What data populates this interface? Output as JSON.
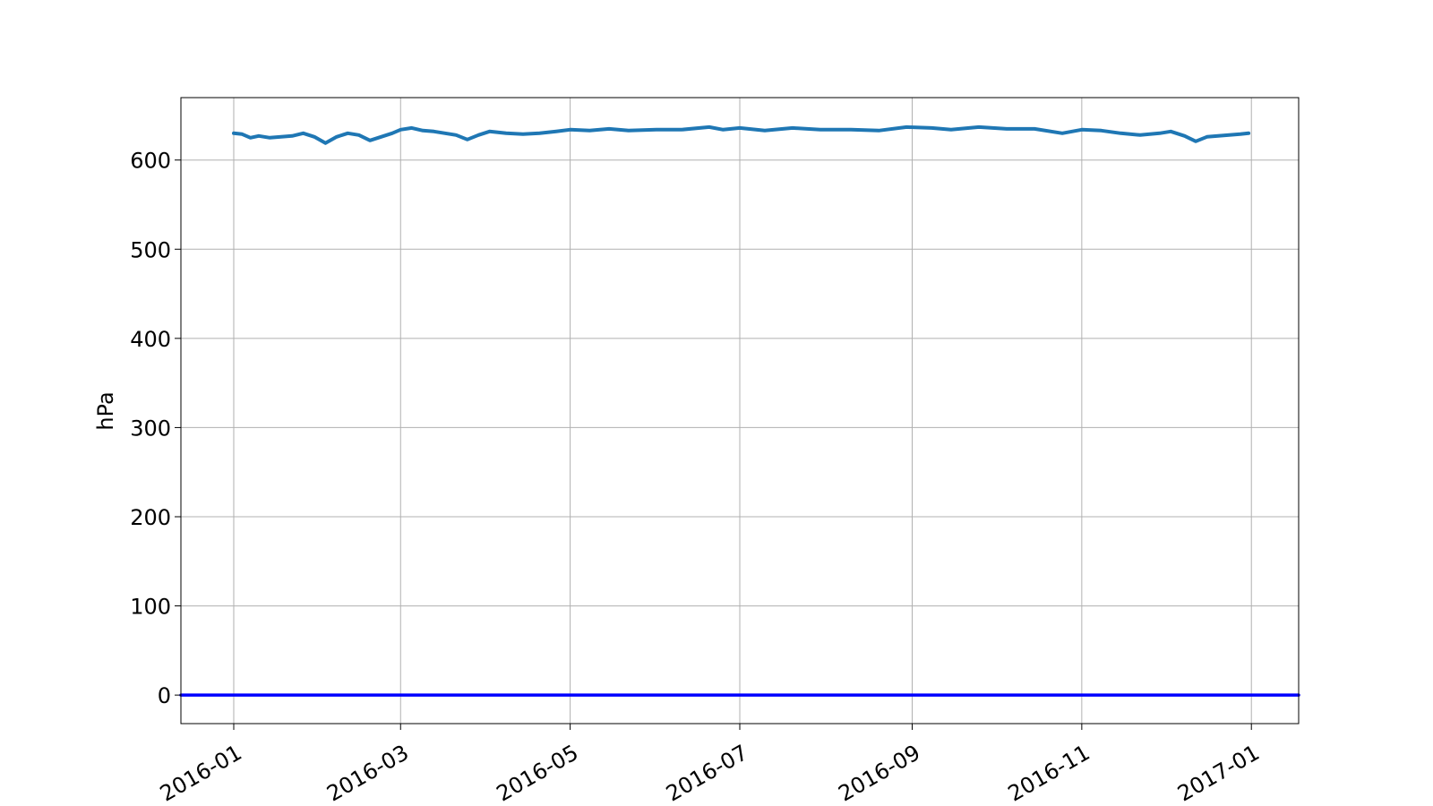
{
  "chart_data": {
    "type": "line",
    "ylabel": "hPa",
    "xlabel": "",
    "title": "",
    "x_range": [
      "2015-12-13",
      "2017-01-18"
    ],
    "ylim": [
      -32,
      670
    ],
    "grid": true,
    "xticks": [
      {
        "date": "2016-01-01",
        "label": "2016-01"
      },
      {
        "date": "2016-03-01",
        "label": "2016-03"
      },
      {
        "date": "2016-05-01",
        "label": "2016-05"
      },
      {
        "date": "2016-07-01",
        "label": "2016-07"
      },
      {
        "date": "2016-09-01",
        "label": "2016-09"
      },
      {
        "date": "2016-11-01",
        "label": "2016-11"
      },
      {
        "date": "2017-01-01",
        "label": "2017-01"
      }
    ],
    "yticks": [
      0,
      100,
      200,
      300,
      400,
      500,
      600
    ],
    "series": [
      {
        "color": "#1f77b4",
        "points": [
          [
            "2016-01-01",
            630
          ],
          [
            "2016-01-04",
            629
          ],
          [
            "2016-01-07",
            625
          ],
          [
            "2016-01-10",
            627
          ],
          [
            "2016-01-14",
            625
          ],
          [
            "2016-01-18",
            626
          ],
          [
            "2016-01-22",
            627
          ],
          [
            "2016-01-26",
            630
          ],
          [
            "2016-01-30",
            626
          ],
          [
            "2016-02-03",
            619
          ],
          [
            "2016-02-07",
            626
          ],
          [
            "2016-02-11",
            630
          ],
          [
            "2016-02-15",
            628
          ],
          [
            "2016-02-19",
            622
          ],
          [
            "2016-02-23",
            626
          ],
          [
            "2016-02-27",
            630
          ],
          [
            "2016-03-01",
            634
          ],
          [
            "2016-03-05",
            636
          ],
          [
            "2016-03-09",
            633
          ],
          [
            "2016-03-13",
            632
          ],
          [
            "2016-03-17",
            630
          ],
          [
            "2016-03-21",
            628
          ],
          [
            "2016-03-25",
            623
          ],
          [
            "2016-03-29",
            628
          ],
          [
            "2016-04-02",
            632
          ],
          [
            "2016-04-08",
            630
          ],
          [
            "2016-04-14",
            629
          ],
          [
            "2016-04-20",
            630
          ],
          [
            "2016-04-26",
            632
          ],
          [
            "2016-05-01",
            634
          ],
          [
            "2016-05-08",
            633
          ],
          [
            "2016-05-15",
            635
          ],
          [
            "2016-05-22",
            633
          ],
          [
            "2016-06-01",
            634
          ],
          [
            "2016-06-10",
            634
          ],
          [
            "2016-06-20",
            637
          ],
          [
            "2016-06-25",
            634
          ],
          [
            "2016-07-01",
            636
          ],
          [
            "2016-07-10",
            633
          ],
          [
            "2016-07-20",
            636
          ],
          [
            "2016-07-30",
            634
          ],
          [
            "2016-08-10",
            634
          ],
          [
            "2016-08-20",
            633
          ],
          [
            "2016-08-30",
            637
          ],
          [
            "2016-09-08",
            636
          ],
          [
            "2016-09-15",
            634
          ],
          [
            "2016-09-25",
            637
          ],
          [
            "2016-10-05",
            635
          ],
          [
            "2016-10-15",
            635
          ],
          [
            "2016-10-25",
            630
          ],
          [
            "2016-11-01",
            634
          ],
          [
            "2016-11-08",
            633
          ],
          [
            "2016-11-15",
            630
          ],
          [
            "2016-11-22",
            628
          ],
          [
            "2016-11-29",
            630
          ],
          [
            "2016-12-03",
            632
          ],
          [
            "2016-12-08",
            627
          ],
          [
            "2016-12-12",
            621
          ],
          [
            "2016-12-16",
            626
          ],
          [
            "2016-12-20",
            627
          ],
          [
            "2016-12-24",
            628
          ],
          [
            "2016-12-28",
            629
          ],
          [
            "2016-12-31",
            630
          ]
        ]
      },
      {
        "color": "#0000ff",
        "points": [
          [
            "2015-12-13",
            0
          ],
          [
            "2017-01-18",
            0
          ]
        ]
      }
    ]
  }
}
